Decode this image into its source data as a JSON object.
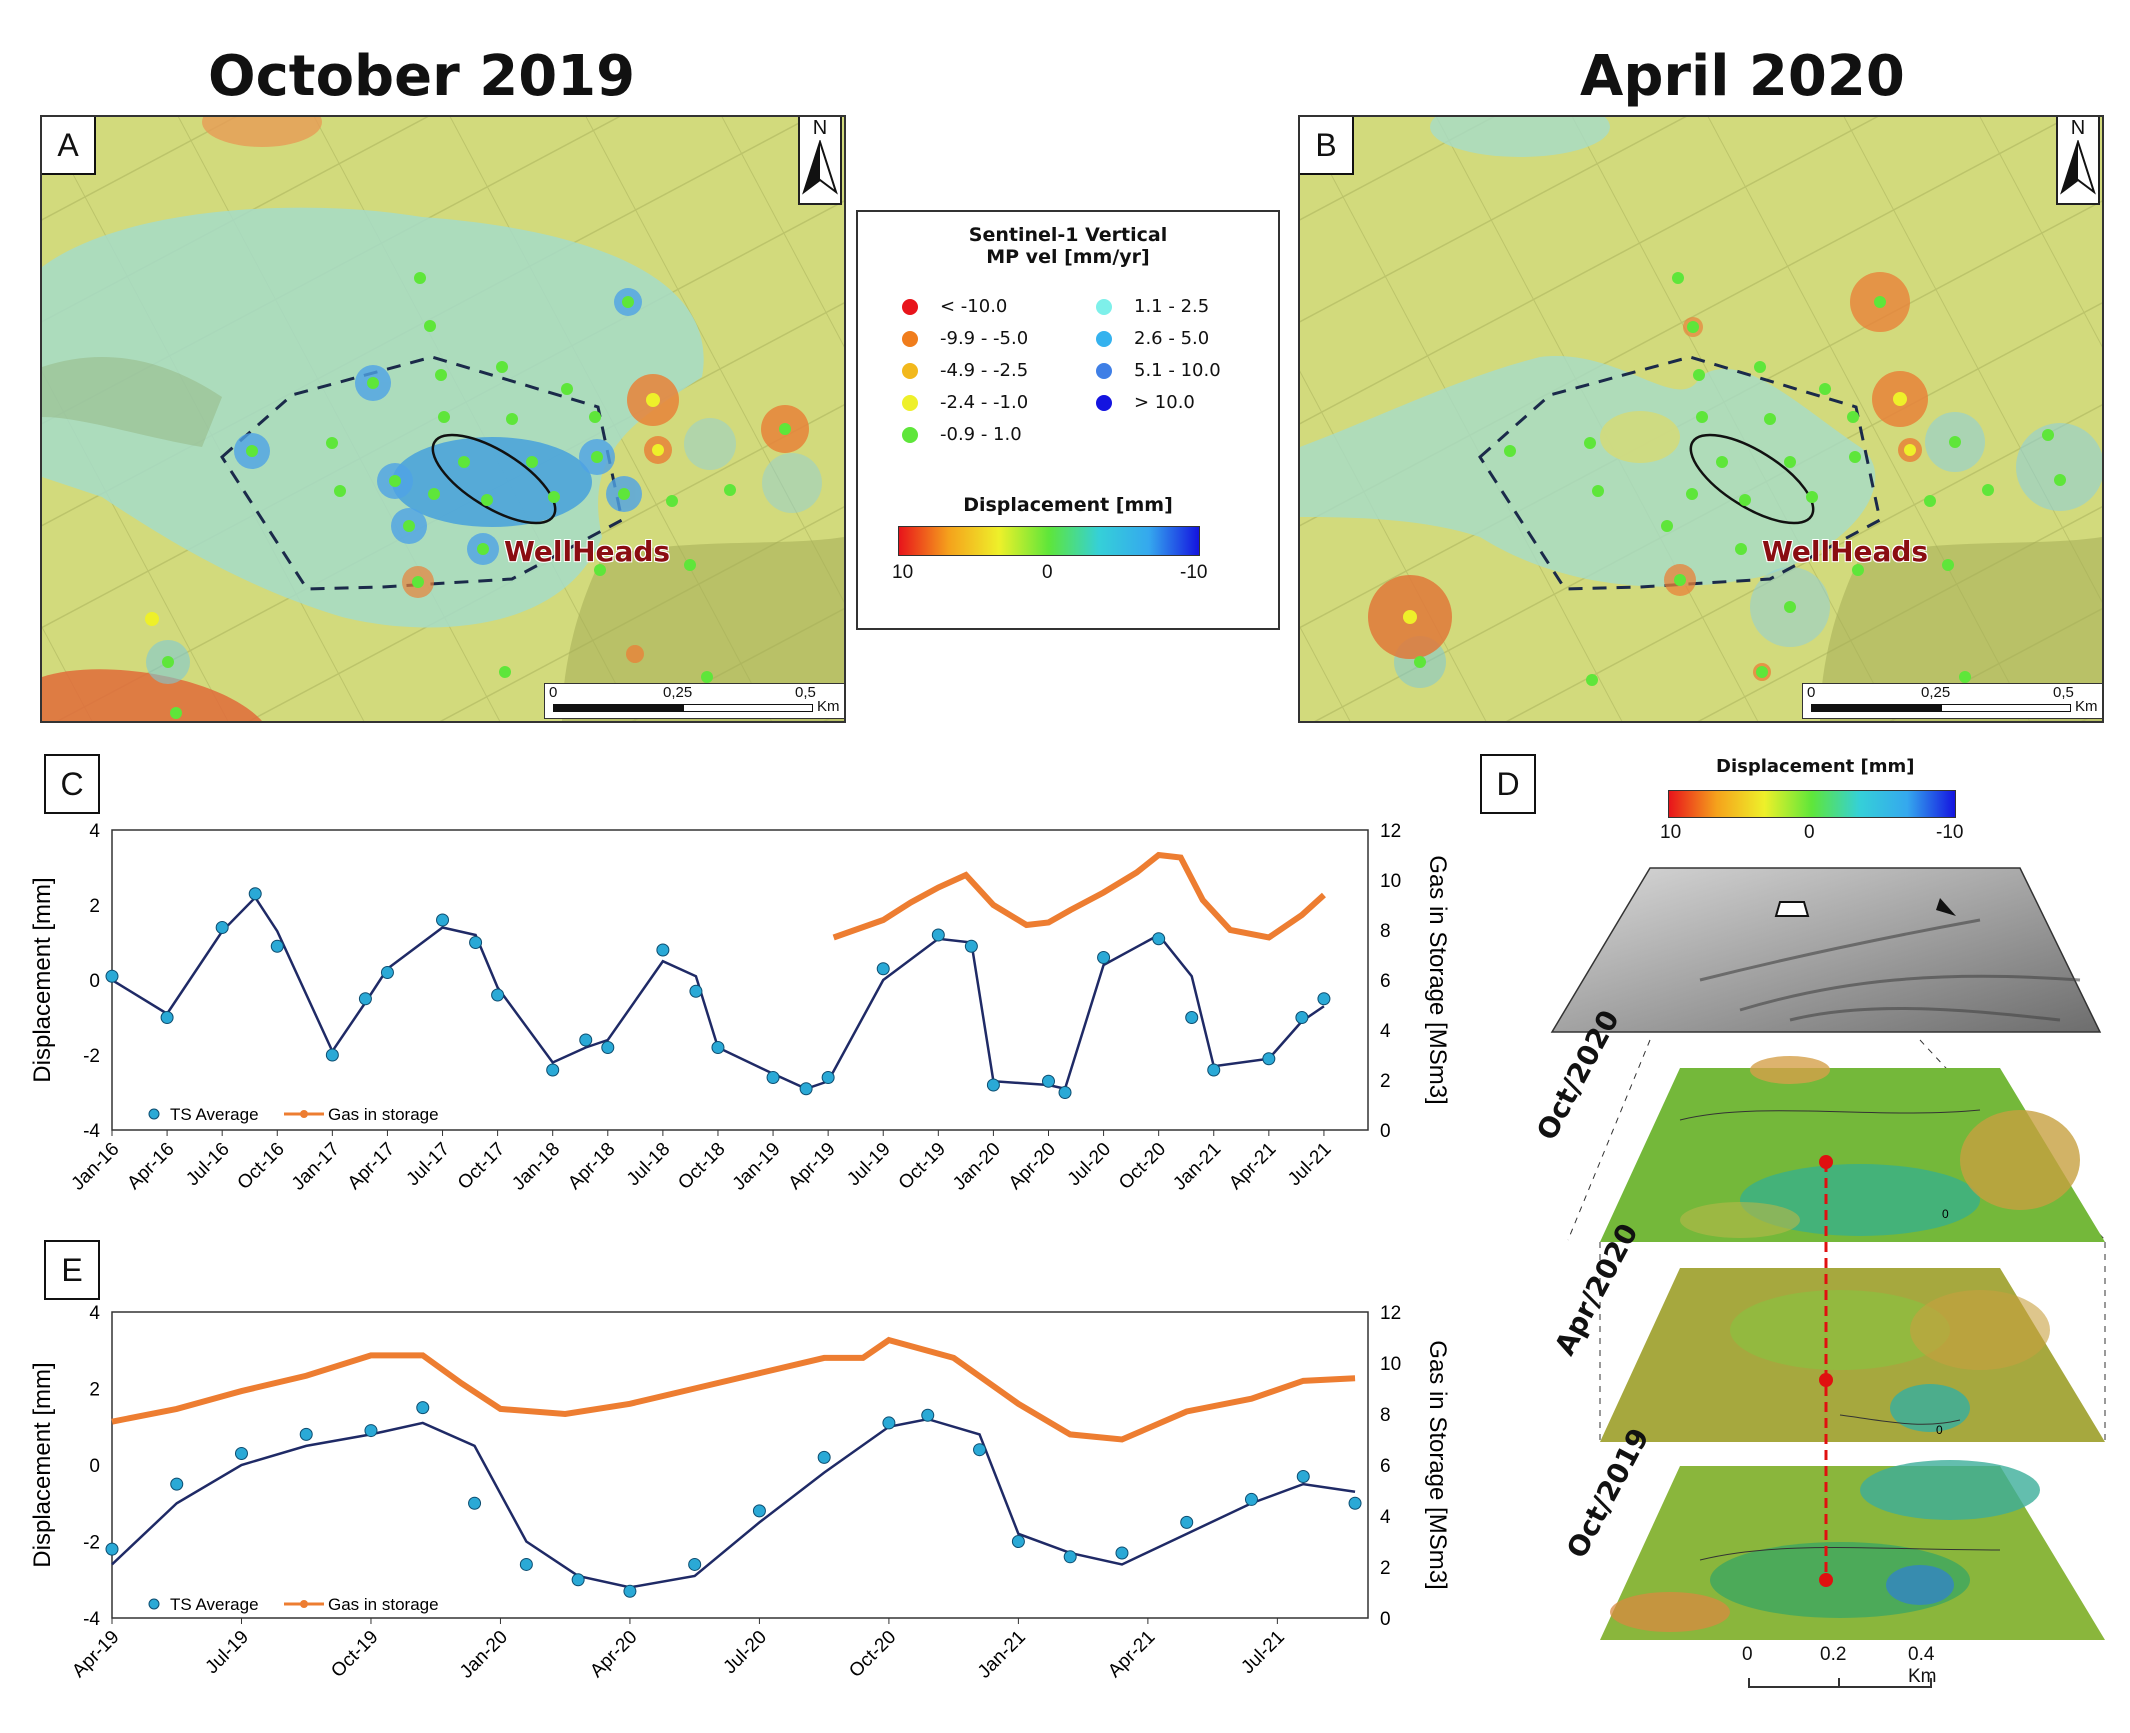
{
  "titles": {
    "left": "October 2019",
    "right": "April 2020"
  },
  "panels": {
    "a": "A",
    "b": "B",
    "c": "C",
    "d": "D",
    "e": "E"
  },
  "map": {
    "north_label": "N",
    "wellheads_label": "WellHeads",
    "scale": {
      "t0": "0",
      "t1": "0,25",
      "t2": "0,5",
      "unit": "Km"
    }
  },
  "legend": {
    "title_line1": "Sentinel-1 Vertical",
    "title_line2": "MP vel [mm/yr]",
    "items_left": [
      {
        "label": "< -10.0",
        "color": "#e8141b"
      },
      {
        "label": "-9.9 - -5.0",
        "color": "#f07d1c"
      },
      {
        "label": "-4.9 - -2.5",
        "color": "#f2b81c"
      },
      {
        "label": "-2.4 - -1.0",
        "color": "#eef02a"
      },
      {
        "label": "-0.9 - 1.0",
        "color": "#5ee63a"
      }
    ],
    "items_right": [
      {
        "label": "1.1 - 2.5",
        "color": "#7ef0ea"
      },
      {
        "label": "2.6 - 5.0",
        "color": "#35b2ee"
      },
      {
        "label": "5.1 - 10.0",
        "color": "#3f7fe6"
      },
      {
        "label": "> 10.0",
        "color": "#1414e0"
      }
    ],
    "displacement_title": "Displacement [mm]",
    "cb_ticks": [
      "10",
      "0",
      "-10"
    ]
  },
  "chart_data": [
    {
      "type": "scatter",
      "panel": "C",
      "xlabel": "",
      "ylabel": "Displacement [mm]",
      "y2label": "Gas in Storage [MSm3]",
      "ylim": [
        -4,
        4
      ],
      "y2lim": [
        0,
        12
      ],
      "yticks": [
        "4",
        "2",
        "0",
        "-2",
        "-4"
      ],
      "y2ticks": [
        "12",
        "10",
        "8",
        "6",
        "4",
        "2",
        "0"
      ],
      "categories": [
        "Jan-16",
        "Apr-16",
        "Jul-16",
        "Oct-16",
        "Jan-17",
        "Apr-17",
        "Jul-17",
        "Oct-17",
        "Jan-18",
        "Apr-18",
        "Jul-18",
        "Oct-18",
        "Jan-19",
        "Apr-19",
        "Jul-19",
        "Oct-19",
        "Jan-20",
        "Apr-20",
        "Jul-20",
        "Oct-20",
        "Jan-21",
        "Apr-21",
        "Jul-21"
      ],
      "legend": [
        "TS Average",
        "Gas in storage"
      ],
      "series": [
        {
          "name": "TS Average",
          "x": [
            0,
            1,
            2,
            2.6,
            3,
            4,
            4.6,
            5,
            6,
            6.6,
            7,
            8,
            8.6,
            9,
            10,
            10.6,
            11,
            12,
            12.6,
            13,
            14,
            15,
            15.6,
            16,
            17,
            17.3,
            18,
            19,
            19.6,
            20,
            21,
            21.6,
            22
          ],
          "values": [
            0.1,
            -1.0,
            1.4,
            2.3,
            0.9,
            -2.0,
            -0.5,
            0.2,
            1.6,
            1.0,
            -0.4,
            -2.4,
            -1.6,
            -1.8,
            0.8,
            -0.3,
            -1.8,
            -2.6,
            -2.9,
            -2.6,
            0.3,
            1.2,
            0.9,
            -2.8,
            -2.7,
            -3.0,
            0.6,
            1.1,
            -1.0,
            -2.4,
            -2.1,
            -1.0,
            -0.5
          ]
        },
        {
          "name": "TS Smoothed",
          "x": [
            0,
            1,
            2,
            2.6,
            3,
            4,
            4.6,
            5,
            6,
            6.6,
            7,
            8,
            8.6,
            9,
            10,
            10.6,
            11,
            12,
            12.6,
            13,
            14,
            15,
            15.6,
            16,
            17,
            17.3,
            18,
            19,
            19.6,
            20,
            21,
            21.6,
            22
          ],
          "values": [
            0.0,
            -0.9,
            1.3,
            2.2,
            1.3,
            -1.9,
            -0.6,
            0.3,
            1.4,
            1.2,
            -0.2,
            -2.2,
            -1.8,
            -1.6,
            0.5,
            0.1,
            -1.8,
            -2.5,
            -2.9,
            -2.7,
            0.0,
            1.1,
            1.0,
            -2.7,
            -2.8,
            -2.9,
            0.4,
            1.2,
            0.1,
            -2.3,
            -2.1,
            -1.1,
            -0.7
          ]
        },
        {
          "name": "Gas in storage",
          "x": [
            13.1,
            14,
            14.5,
            15,
            15.5,
            16,
            16.6,
            17,
            17.4,
            18,
            18.6,
            19,
            19.4,
            19.8,
            20.3,
            21,
            21.6,
            22
          ],
          "values": [
            7.7,
            8.4,
            9.1,
            9.7,
            10.2,
            9.0,
            8.2,
            8.3,
            8.8,
            9.5,
            10.3,
            11.0,
            10.9,
            9.2,
            8.0,
            7.7,
            8.6,
            9.4
          ]
        }
      ]
    },
    {
      "type": "scatter",
      "panel": "E",
      "xlabel": "",
      "ylabel": "Displacement [mm]",
      "y2label": "Gas in Storage [MSm3]",
      "ylim": [
        -4,
        4
      ],
      "y2lim": [
        0,
        12
      ],
      "yticks": [
        "4",
        "2",
        "0",
        "-2",
        "-4"
      ],
      "y2ticks": [
        "12",
        "10",
        "8",
        "6",
        "4",
        "2",
        "0"
      ],
      "categories": [
        "Apr-19",
        "Jul-19",
        "Oct-19",
        "Jan-20",
        "Apr-20",
        "Jul-20",
        "Oct-20",
        "Jan-21",
        "Apr-21",
        "Jul-21"
      ],
      "legend": [
        "TS Average",
        "Gas in storage"
      ],
      "series": [
        {
          "name": "TS Average",
          "x": [
            0,
            0.5,
            1,
            1.5,
            2,
            2.4,
            2.8,
            3.2,
            3.6,
            4,
            4.5,
            5,
            5.5,
            6,
            6.3,
            6.7,
            7,
            7.4,
            7.8,
            8.3,
            8.8,
            9.2,
            9.6
          ],
          "values": [
            -2.2,
            -0.5,
            0.3,
            0.8,
            0.9,
            1.5,
            -1.0,
            -2.6,
            -3.0,
            -3.3,
            -2.6,
            -1.2,
            0.2,
            1.1,
            1.3,
            0.4,
            -2.0,
            -2.4,
            -2.3,
            -1.5,
            -0.9,
            -0.3,
            -1.0
          ]
        },
        {
          "name": "TS Smoothed",
          "x": [
            0,
            0.5,
            1,
            1.5,
            2,
            2.4,
            2.8,
            3.2,
            3.6,
            4,
            4.5,
            5,
            5.5,
            6,
            6.3,
            6.7,
            7,
            7.4,
            7.8,
            8.3,
            8.8,
            9.2,
            9.6
          ],
          "values": [
            -2.6,
            -1.0,
            0.0,
            0.5,
            0.8,
            1.1,
            0.5,
            -2.0,
            -2.9,
            -3.2,
            -2.9,
            -1.5,
            -0.2,
            1.0,
            1.2,
            0.8,
            -1.8,
            -2.3,
            -2.6,
            -1.8,
            -1.0,
            -0.5,
            -0.7
          ]
        },
        {
          "name": "Gas in storage",
          "x": [
            0,
            0.5,
            1,
            1.5,
            2,
            2.4,
            2.7,
            3,
            3.5,
            4,
            4.5,
            5,
            5.5,
            5.8,
            6,
            6.5,
            7,
            7.4,
            7.8,
            8.3,
            8.8,
            9.2,
            9.6
          ],
          "values": [
            7.7,
            8.2,
            8.9,
            9.5,
            10.3,
            10.3,
            9.2,
            8.2,
            8.0,
            8.4,
            9.0,
            9.6,
            10.2,
            10.2,
            10.9,
            10.2,
            8.4,
            7.2,
            7.0,
            8.1,
            8.6,
            9.3,
            9.4
          ]
        }
      ]
    }
  ],
  "panel_d": {
    "cb_title": "Displacement [mm]",
    "cb_ticks": [
      "10",
      "0",
      "-10"
    ],
    "layers": [
      "Oct/2020",
      "Apr/2020",
      "Oct/2019"
    ],
    "contour_label": "0",
    "scale": {
      "t0": "0",
      "t1": "0.2",
      "t2": "0.4 Km"
    }
  }
}
